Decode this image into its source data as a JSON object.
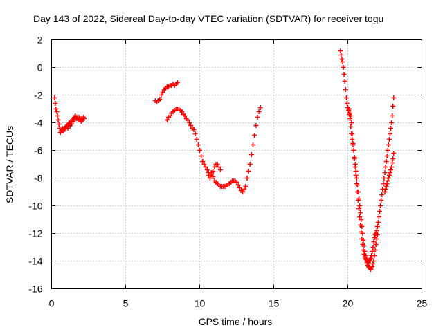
{
  "chart_data": {
    "type": "scatter",
    "title": "Day 143 of 2022, Sidereal Day-to-day VTEC variation (SDTVAR) for receiver togu",
    "xlabel": "GPS time / hours",
    "ylabel": "SDTVAR / TECUs",
    "xlim": [
      0,
      25
    ],
    "ylim": [
      -16,
      2
    ],
    "xticks": [
      0,
      5,
      10,
      15,
      20,
      25
    ],
    "yticks": [
      2,
      0,
      -2,
      -4,
      -6,
      -8,
      -10,
      -12,
      -14,
      -16
    ],
    "grid": true,
    "marker": "plus",
    "marker_color": "#ff0000",
    "series": [
      {
        "x": [
          0.2,
          0.25,
          0.3,
          0.35,
          0.4,
          0.45,
          0.5,
          0.55,
          0.6,
          0.65,
          0.7,
          0.75,
          0.8,
          0.85,
          0.9,
          0.95,
          1.0,
          1.05,
          1.1,
          1.15,
          1.2,
          1.25,
          1.3,
          1.35,
          1.4,
          1.45,
          1.5,
          1.55,
          1.6,
          1.65,
          1.7,
          1.75,
          1.8,
          1.85,
          1.9,
          1.95,
          2.0,
          2.05,
          2.1,
          2.15,
          2.2
        ],
        "y": [
          -2.2,
          -2.6,
          -3.0,
          -3.2,
          -3.5,
          -3.8,
          -4.1,
          -4.4,
          -4.7,
          -4.6,
          -4.5,
          -4.4,
          -4.6,
          -4.5,
          -4.4,
          -4.3,
          -4.3,
          -4.2,
          -4.4,
          -4.1,
          -4.0,
          -4.2,
          -3.9,
          -4.1,
          -3.8,
          -3.9,
          -3.7,
          -3.6,
          -3.5,
          -3.7,
          -3.6,
          -3.7,
          -3.8,
          -3.6,
          -3.7,
          -3.8,
          -3.9,
          -3.7,
          -3.8,
          -3.6,
          -3.7
        ]
      },
      {
        "x": [
          7.0,
          7.1,
          7.2,
          7.3,
          7.4,
          7.5,
          7.6,
          7.7,
          7.8,
          7.9,
          8.0,
          8.1,
          8.2,
          8.3,
          8.4,
          8.5
        ],
        "y": [
          -2.4,
          -2.5,
          -2.4,
          -2.3,
          -2.0,
          -1.8,
          -1.6,
          -1.5,
          -1.4,
          -1.4,
          -1.3,
          -1.3,
          -1.2,
          -1.3,
          -1.2,
          -1.1
        ]
      },
      {
        "x": [
          7.8,
          7.9,
          8.0,
          8.1,
          8.2,
          8.3,
          8.4,
          8.5,
          8.6,
          8.7,
          8.8,
          8.9,
          9.0,
          9.1,
          9.2,
          9.3,
          9.4,
          9.5,
          9.6,
          9.7,
          9.8,
          9.9,
          10.0,
          10.1,
          10.2,
          10.3,
          10.4,
          10.5,
          10.6,
          10.7,
          10.8,
          10.9,
          11.0,
          11.1,
          11.2,
          11.3,
          11.4
        ],
        "y": [
          -3.8,
          -3.6,
          -3.5,
          -3.3,
          -3.2,
          -3.1,
          -3.0,
          -3.0,
          -3.0,
          -3.1,
          -3.2,
          -3.4,
          -3.5,
          -3.7,
          -3.8,
          -4.0,
          -4.2,
          -4.4,
          -4.5,
          -4.8,
          -5.2,
          -5.6,
          -6.0,
          -6.4,
          -6.8,
          -7.0,
          -7.2,
          -7.4,
          -7.6,
          -7.8,
          -7.7,
          -7.5,
          -7.2,
          -7.0,
          -7.0,
          -7.2,
          -7.4
        ]
      },
      {
        "x": [
          10.6,
          10.7,
          10.8,
          10.9,
          11.0,
          11.1,
          11.2,
          11.3,
          11.4,
          11.5,
          11.6,
          11.7,
          11.8,
          11.9,
          12.0,
          12.1,
          12.2,
          12.3,
          12.4,
          12.5,
          12.6,
          12.7,
          12.8,
          12.9,
          13.0,
          13.1,
          13.2,
          13.3,
          13.4,
          13.5,
          13.6,
          13.7,
          13.8,
          13.9,
          14.0,
          14.1
        ],
        "y": [
          -7.8,
          -8.0,
          -7.6,
          -7.9,
          -8.2,
          -8.3,
          -8.4,
          -8.5,
          -8.6,
          -8.6,
          -8.6,
          -8.6,
          -8.5,
          -8.5,
          -8.4,
          -8.3,
          -8.2,
          -8.2,
          -8.2,
          -8.3,
          -8.5,
          -8.7,
          -8.9,
          -9.0,
          -8.8,
          -8.6,
          -8.0,
          -7.5,
          -7.0,
          -6.3,
          -5.6,
          -4.9,
          -4.2,
          -3.6,
          -3.2,
          -2.9
        ]
      },
      {
        "x": [
          19.5,
          19.55,
          19.6,
          19.65,
          19.7,
          19.75,
          19.8,
          19.85,
          19.9,
          19.95,
          20.0,
          20.05,
          20.1,
          20.15,
          20.2,
          20.25,
          20.3,
          20.35,
          20.4,
          20.45,
          20.5,
          20.55,
          20.6,
          20.65,
          20.7,
          20.75,
          20.8,
          20.85,
          20.9,
          20.95,
          21.0,
          21.05,
          21.1,
          21.15,
          21.2,
          21.25,
          21.3,
          21.35,
          21.4,
          21.45,
          21.5,
          21.55,
          21.6,
          21.65,
          21.7,
          21.75,
          21.8,
          21.85,
          21.9,
          21.95,
          22.0
        ],
        "y": [
          1.2,
          0.9,
          0.6,
          0.4,
          0.0,
          -0.5,
          -1.0,
          -1.6,
          -2.2,
          -2.6,
          -2.9,
          -3.1,
          -3.4,
          -3.7,
          -4.3,
          -4.8,
          -5.2,
          -5.6,
          -6.0,
          -6.5,
          -7.0,
          -7.5,
          -8.0,
          -8.5,
          -9.0,
          -9.5,
          -10.0,
          -10.5,
          -11.0,
          -11.5,
          -12.0,
          -12.5,
          -12.9,
          -13.3,
          -13.6,
          -13.9,
          -14.1,
          -14.3,
          -14.4,
          -14.5,
          -14.5,
          -14.6,
          -14.5,
          -14.4,
          -14.2,
          -14.0,
          -13.6,
          -13.2,
          -12.8,
          -12.4,
          -12.1
        ]
      },
      {
        "x": [
          20.1,
          20.15,
          20.2,
          20.25,
          20.3,
          20.35,
          20.4,
          20.45,
          20.5,
          20.55,
          20.6,
          20.65,
          20.7,
          20.75,
          20.8,
          20.85,
          20.9,
          20.95,
          21.0,
          21.05,
          21.1,
          21.15,
          21.2,
          21.25,
          21.3,
          21.35,
          21.4,
          21.45,
          21.5,
          21.55,
          21.6,
          21.65,
          21.7,
          21.75,
          21.8,
          21.85,
          21.9,
          21.95,
          22.0,
          22.05,
          22.1,
          22.15,
          22.2,
          22.25,
          22.3,
          22.35,
          22.4,
          22.45,
          22.5,
          22.55,
          22.6,
          22.65,
          22.7,
          22.75,
          22.8,
          22.85,
          22.9,
          22.95,
          23.0,
          23.05,
          23.1
        ],
        "y": [
          -3.0,
          -3.3,
          -3.5,
          -4.0,
          -4.8,
          -5.5,
          -6.0,
          -6.6,
          -7.2,
          -7.8,
          -8.4,
          -9.0,
          -9.6,
          -10.2,
          -10.8,
          -11.4,
          -11.9,
          -12.4,
          -12.8,
          -13.2,
          -13.5,
          -13.7,
          -13.8,
          -13.9,
          -14.0,
          -14.0,
          -14.1,
          -14.0,
          -13.9,
          -13.8,
          -13.6,
          -13.3,
          -13.0,
          -12.6,
          -12.3,
          -12.1,
          -12.0,
          -11.8,
          -11.5,
          -11.2,
          -10.8,
          -10.4,
          -10.0,
          -9.6,
          -9.2,
          -8.8,
          -8.4,
          -8.0,
          -7.6,
          -7.2,
          -6.8,
          -6.4,
          -6.0,
          -5.6,
          -5.2,
          -4.8,
          -4.4,
          -4.0,
          -3.5,
          -2.8,
          -2.2
        ]
      },
      {
        "x": [
          22.5,
          22.55,
          22.6,
          22.65,
          22.7,
          22.75,
          22.8,
          22.85,
          22.9,
          22.95,
          23.0,
          23.05,
          23.1
        ],
        "y": [
          -9.0,
          -8.8,
          -8.6,
          -8.4,
          -8.2,
          -8.0,
          -7.8,
          -7.6,
          -7.4,
          -7.2,
          -6.9,
          -6.6,
          -6.2
        ]
      }
    ]
  }
}
